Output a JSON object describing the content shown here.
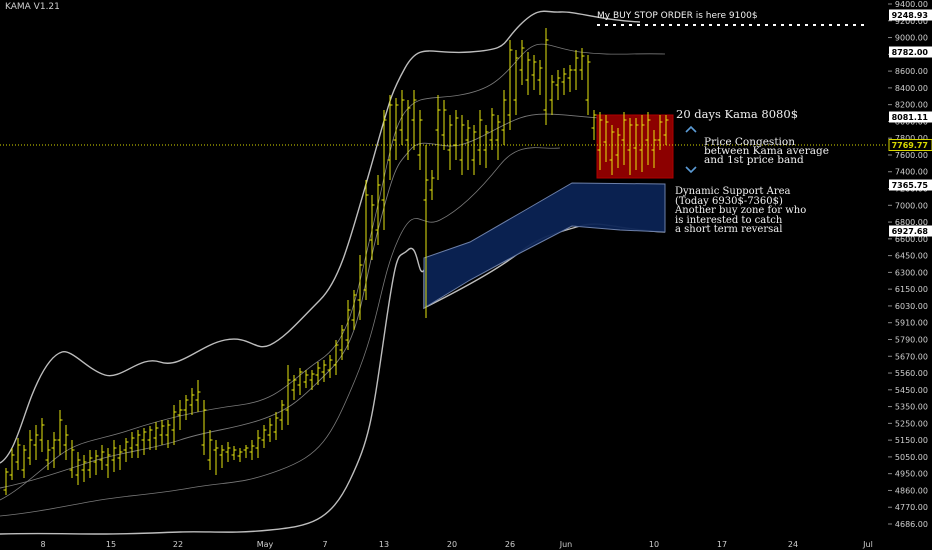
{
  "indicator_label": "KAMA V1.21",
  "chart_data": {
    "type": "ohlc",
    "y_axis": {
      "ticks": [
        "9400.00",
        "9200.00",
        "9000.00",
        "8800.00",
        "8600.00",
        "8400.00",
        "8200.00",
        "8000.00",
        "7800.00",
        "7600.00",
        "7400.00",
        "7200.00",
        "7000.00",
        "6800.00",
        "6600.00",
        "6450.00",
        "6300.00",
        "6150.00",
        "6030.00",
        "5910.00",
        "5790.00",
        "5670.00",
        "5560.00",
        "5450.00",
        "5350.00",
        "5250.00",
        "5150.00",
        "5050.00",
        "4950.00",
        "4860.00",
        "4770.00",
        "4686.00"
      ],
      "price_labels": [
        {
          "text": "9248.93",
          "kind": "outline"
        },
        {
          "text": "8782.00",
          "kind": "outline"
        },
        {
          "text": "8081.11",
          "kind": "outline"
        },
        {
          "text": "7769.77",
          "kind": "yellow"
        },
        {
          "text": "7365.75",
          "kind": "outline"
        },
        {
          "text": "6927.68",
          "kind": "outline"
        }
      ]
    },
    "x_axis": {
      "ticks": [
        "8",
        "15",
        "22",
        "May",
        "7",
        "13",
        "20",
        "26",
        "Jun",
        "10",
        "17",
        "24",
        "Jul"
      ]
    },
    "annotations": {
      "buy_stop": "My BUY STOP ORDER is here 9100$",
      "kama_label": "20 days Kama 8080$",
      "congestion": [
        "Price Congestion",
        "between Kama average",
        "and 1st price band"
      ],
      "support": [
        "Dynamic Support Area",
        "(Today 6930$-7360$)",
        "Another buy zone for who",
        "is interested to catch",
        "a short term reversal"
      ]
    },
    "colors": {
      "background": "#000000",
      "bars": "#e5e510",
      "bands": "#bdbdbd",
      "kama_average": "#7a7a7a",
      "congestion_box": "#8c0000",
      "support_box": "#0b2354",
      "dotted_price_line": "#d8d800",
      "arrows": "#5b9bd5"
    }
  }
}
